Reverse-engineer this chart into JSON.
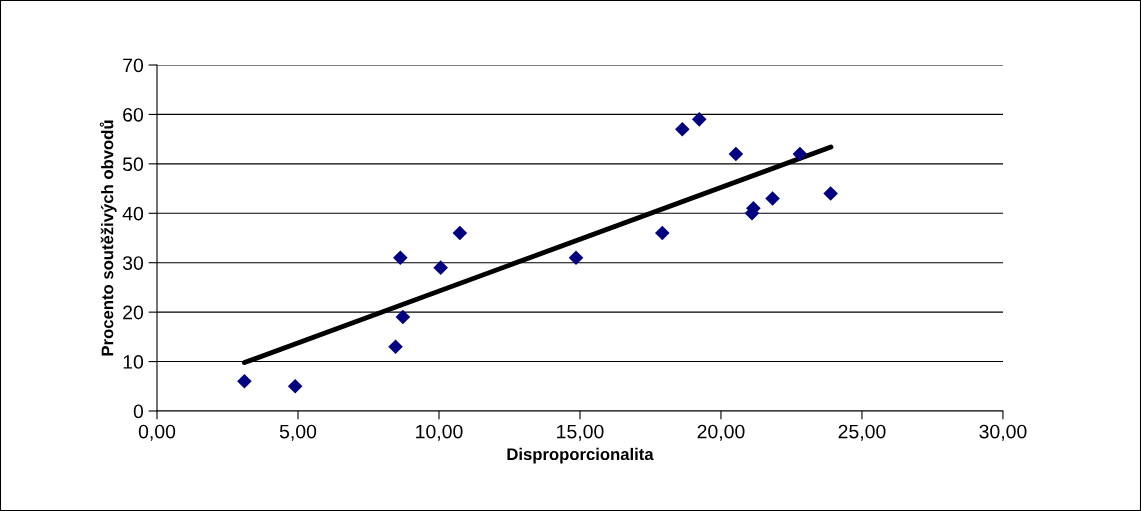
{
  "chart_data": {
    "type": "scatter",
    "xlabel": "Disproporcionalita",
    "ylabel": "Procento soutěživých obvodů",
    "series": [
      {
        "color": "#000080",
        "marker": "diamond",
        "x": [
          3.1,
          4.9,
          8.46,
          8.63,
          8.72,
          10.06,
          10.74,
          14.86,
          17.92,
          18.63,
          19.23,
          20.53,
          22.8,
          21.15,
          21.1,
          21.83,
          23.89
        ],
        "values": [
          6,
          5,
          13,
          31,
          19,
          29,
          36,
          31,
          36,
          57,
          59,
          52,
          52,
          41,
          40,
          43,
          44
        ]
      },
      {
        "type": "line",
        "color": "#000000",
        "marker": "none",
        "line_style": "solid",
        "x": [
          3.1,
          23.9
        ],
        "values": [
          9.8,
          53.4
        ]
      }
    ],
    "xlim": [
      0,
      30
    ],
    "ylim": [
      0,
      70
    ],
    "xticks": [
      {
        "value": 0,
        "label": "0,00"
      },
      {
        "value": 5,
        "label": "5,00"
      },
      {
        "value": 10,
        "label": "10,00"
      },
      {
        "value": 15,
        "label": "15,00"
      },
      {
        "value": 20,
        "label": "20,00"
      },
      {
        "value": 25,
        "label": "25,00"
      },
      {
        "value": 30,
        "label": "30,00"
      }
    ],
    "yticks": [
      0,
      10,
      20,
      30,
      40,
      50,
      60,
      70
    ],
    "grid": "y",
    "legend": false
  }
}
